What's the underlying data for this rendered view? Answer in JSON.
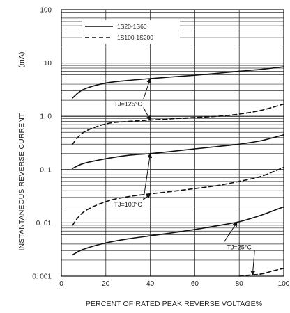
{
  "chart_data": {
    "type": "line",
    "xlabel": "PERCENT OF RATED PEAK REVERSE VOLTAGE%",
    "ylabel": "INSTANTANEOUS REVERSE CURRENT",
    "ylabel_unit": "(mA)",
    "xlim": [
      0,
      100
    ],
    "ylim": [
      0.001,
      100
    ],
    "yscale": "log",
    "grid": true,
    "x_ticks": [
      0,
      20,
      40,
      60,
      80,
      100
    ],
    "x_tick_labels": [
      "0",
      "20",
      "40",
      "60",
      "80",
      "100"
    ],
    "y_ticks": [
      0.001,
      0.01,
      0.1,
      1,
      10,
      100
    ],
    "y_tick_labels": [
      "0. 001",
      "0. 01",
      "0. 1",
      "1. 0",
      "10",
      "100"
    ],
    "legend_position": "top",
    "legend": [
      {
        "label": "1S20-1S60",
        "style": "solid"
      },
      {
        "label": "1S100-1S200",
        "style": "dashed"
      }
    ],
    "annotations": [
      {
        "label": "TJ=125°C",
        "at": [
          30,
          1.7
        ]
      },
      {
        "label": "TJ=100°C",
        "at": [
          30,
          0.022
        ]
      },
      {
        "label": "TJ=25°C",
        "at": [
          80,
          0.0035
        ]
      }
    ],
    "series": [
      {
        "legend": "1S20-1S60",
        "temperature": "TJ=125°C",
        "style": "solid",
        "x": [
          5,
          10,
          20,
          30,
          40,
          50,
          60,
          70,
          80,
          90,
          100
        ],
        "y": [
          2.2,
          3.2,
          4.2,
          4.7,
          5.1,
          5.5,
          5.9,
          6.4,
          7.0,
          7.6,
          8.5
        ]
      },
      {
        "legend": "1S100-1S200",
        "temperature": "TJ=125°C",
        "style": "dashed",
        "x": [
          5,
          10,
          20,
          30,
          40,
          50,
          60,
          70,
          80,
          90,
          100
        ],
        "y": [
          0.3,
          0.5,
          0.72,
          0.8,
          0.85,
          0.9,
          0.95,
          1.0,
          1.1,
          1.3,
          1.7
        ]
      },
      {
        "legend": "1S20-1S60",
        "temperature": "TJ=100°C",
        "style": "solid",
        "x": [
          5,
          10,
          20,
          30,
          40,
          50,
          60,
          70,
          80,
          90,
          100
        ],
        "y": [
          0.105,
          0.13,
          0.16,
          0.185,
          0.2,
          0.22,
          0.245,
          0.27,
          0.3,
          0.35,
          0.45
        ]
      },
      {
        "legend": "1S100-1S200",
        "temperature": "TJ=100°C",
        "style": "dashed",
        "x": [
          5,
          10,
          20,
          30,
          40,
          50,
          60,
          70,
          80,
          90,
          100
        ],
        "y": [
          0.009,
          0.016,
          0.025,
          0.031,
          0.035,
          0.039,
          0.044,
          0.05,
          0.06,
          0.075,
          0.11
        ]
      },
      {
        "legend": "1S20-1S60",
        "temperature": "TJ=25°C",
        "style": "solid",
        "x": [
          5,
          10,
          20,
          30,
          40,
          50,
          60,
          70,
          80,
          90,
          100
        ],
        "y": [
          0.0025,
          0.0032,
          0.0042,
          0.005,
          0.0057,
          0.0065,
          0.0075,
          0.0088,
          0.0105,
          0.014,
          0.02
        ]
      },
      {
        "legend": "1S100-1S200",
        "temperature": "TJ=25°C",
        "style": "dashed",
        "x": [
          80,
          85,
          90,
          95,
          100
        ],
        "y": [
          0.001,
          0.00105,
          0.0011,
          0.00125,
          0.0014
        ]
      }
    ]
  }
}
